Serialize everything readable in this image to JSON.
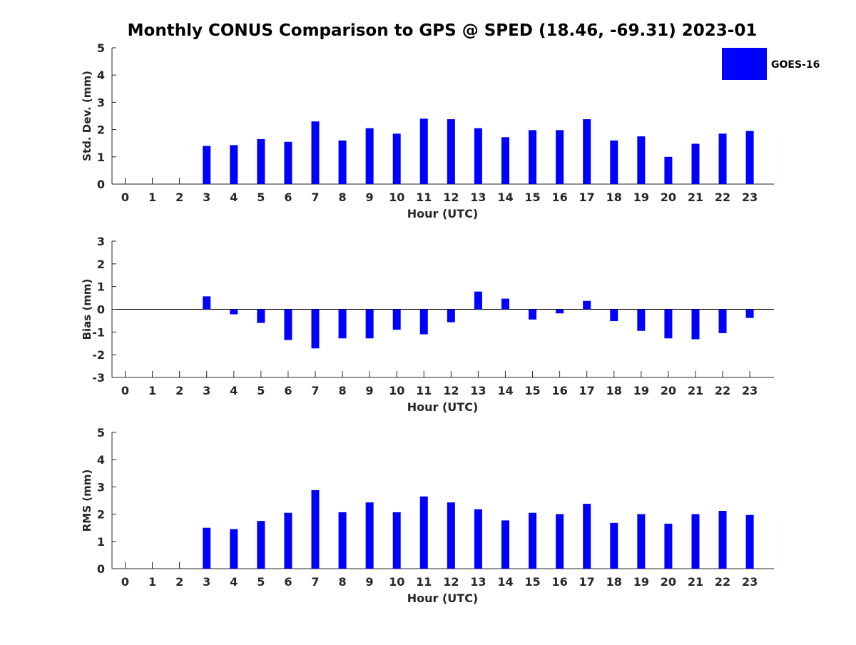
{
  "figure": {
    "title": "Monthly CONUS Comparison to GPS @ SPED (18.46, -69.31) 2023-01",
    "legend": {
      "label": "GOES-16",
      "color": "#0000ff",
      "placement": "top-right"
    }
  },
  "chart_data": [
    {
      "type": "bar",
      "ylabel": "Std. Dev. (mm)",
      "xlabel": "Hour (UTC)",
      "ylim": [
        0,
        5
      ],
      "yticks": [
        0,
        1,
        2,
        3,
        4,
        5
      ],
      "categories": [
        "0",
        "1",
        "2",
        "3",
        "4",
        "5",
        "6",
        "7",
        "8",
        "9",
        "10",
        "11",
        "12",
        "13",
        "14",
        "15",
        "16",
        "17",
        "18",
        "19",
        "20",
        "21",
        "22",
        "23"
      ],
      "series": [
        {
          "name": "GOES-16",
          "values": [
            null,
            null,
            null,
            1.4,
            1.43,
            1.65,
            1.55,
            2.3,
            1.6,
            2.05,
            1.85,
            2.4,
            2.38,
            2.05,
            1.72,
            1.98,
            1.98,
            2.38,
            1.6,
            1.75,
            1.0,
            1.48,
            1.85,
            1.95
          ]
        }
      ]
    },
    {
      "type": "bar",
      "ylabel": "Bias (mm)",
      "xlabel": "Hour (UTC)",
      "ylim": [
        -3,
        3
      ],
      "yticks": [
        -3,
        -2,
        -1,
        0,
        1,
        2,
        3
      ],
      "categories": [
        "0",
        "1",
        "2",
        "3",
        "4",
        "5",
        "6",
        "7",
        "8",
        "9",
        "10",
        "11",
        "12",
        "13",
        "14",
        "15",
        "16",
        "17",
        "18",
        "19",
        "20",
        "21",
        "22",
        "23"
      ],
      "series": [
        {
          "name": "GOES-16",
          "values": [
            null,
            null,
            null,
            0.57,
            -0.22,
            -0.6,
            -1.35,
            -1.72,
            -1.28,
            -1.28,
            -0.9,
            -1.1,
            -0.57,
            0.78,
            0.47,
            -0.45,
            -0.18,
            0.37,
            -0.52,
            -0.95,
            -1.28,
            -1.32,
            -1.05,
            -0.38
          ]
        }
      ]
    },
    {
      "type": "bar",
      "ylabel": "RMS (mm)",
      "xlabel": "Hour (UTC)",
      "ylim": [
        0,
        5
      ],
      "yticks": [
        0,
        1,
        2,
        3,
        4,
        5
      ],
      "categories": [
        "0",
        "1",
        "2",
        "3",
        "4",
        "5",
        "6",
        "7",
        "8",
        "9",
        "10",
        "11",
        "12",
        "13",
        "14",
        "15",
        "16",
        "17",
        "18",
        "19",
        "20",
        "21",
        "22",
        "23"
      ],
      "series": [
        {
          "name": "GOES-16",
          "values": [
            null,
            null,
            null,
            1.5,
            1.45,
            1.75,
            2.05,
            2.88,
            2.07,
            2.43,
            2.07,
            2.65,
            2.43,
            2.18,
            1.77,
            2.05,
            2.0,
            2.38,
            1.68,
            2.0,
            1.65,
            2.0,
            2.12,
            1.97
          ]
        }
      ]
    }
  ]
}
